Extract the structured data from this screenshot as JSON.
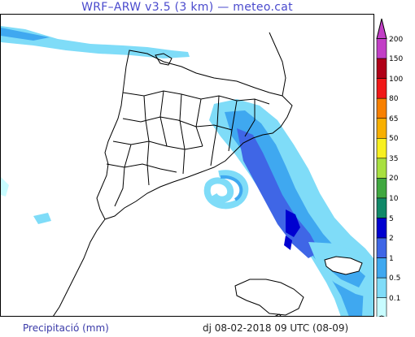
{
  "title": "WRF–ARW v3.5 (3 km) — meteo.cat",
  "footer": {
    "variable": "Precipitació (mm)",
    "valid_time": "dj 08-02-2018 09 UTC (08-09)"
  },
  "legend": {
    "levels": [
      {
        "label": "200",
        "color": "#c23fc6"
      },
      {
        "label": "150",
        "color": "#b00018"
      },
      {
        "label": "100",
        "color": "#f01818"
      },
      {
        "label": "80",
        "color": "#f88000"
      },
      {
        "label": "65",
        "color": "#f8b000"
      },
      {
        "label": "50",
        "color": "#f8f020"
      },
      {
        "label": "35",
        "color": "#a8e040"
      },
      {
        "label": "20",
        "color": "#40a840"
      },
      {
        "label": "10",
        "color": "#108868"
      },
      {
        "label": "5",
        "color": "#0000d0"
      },
      {
        "label": "2",
        "color": "#3f66e6"
      },
      {
        "label": "1",
        "color": "#3fa8f0"
      },
      {
        "label": "0.5",
        "color": "#7fdcf8"
      },
      {
        "label": "0.1",
        "color": "#c8fcff"
      }
    ]
  }
}
